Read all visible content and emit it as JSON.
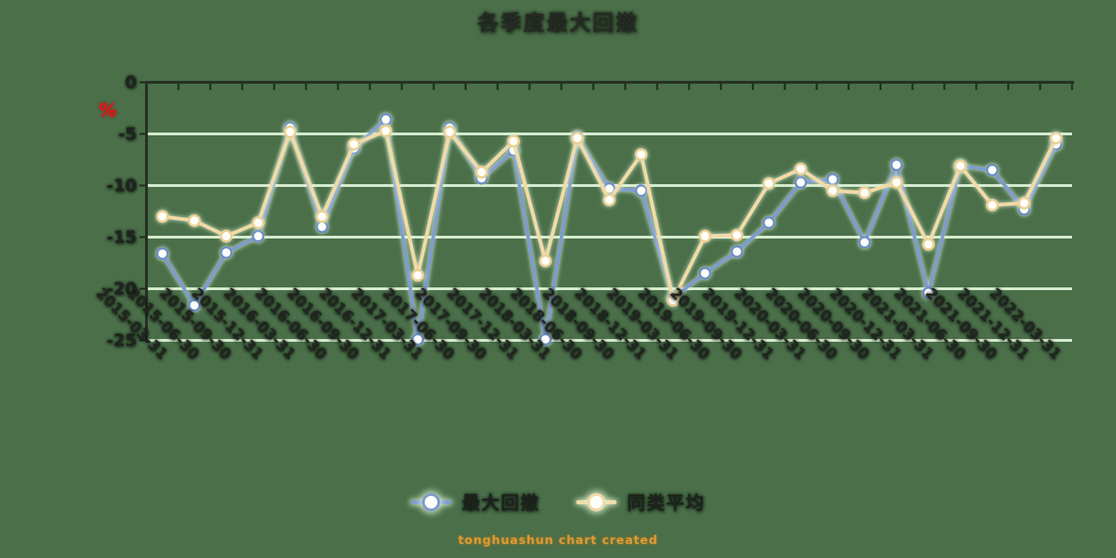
{
  "title": "各季度最大回撤",
  "y_axis": {
    "unit": "%",
    "tick_labels": [
      "0",
      "-5",
      "-10",
      "-15",
      "-20",
      "-25"
    ],
    "tick_values": [
      0,
      -5,
      -10,
      -15,
      -20,
      -25
    ]
  },
  "legend": {
    "items": [
      {
        "label": "最大回撤",
        "color": "#7d9ccf"
      },
      {
        "label": "同类平均",
        "color": "#f2daa6"
      }
    ]
  },
  "watermark": "tonghuashun chart created",
  "colors": {
    "background": "#4a6f49",
    "gridline": "#d6ecd0",
    "axis": "#243023",
    "glow": "#e8fadc",
    "blue_line": "#7d9ccf",
    "blue_marker_ring": "#6e8fc7",
    "yellow_line": "#f2daa6",
    "yellow_marker_ring": "#ecd093",
    "marker_fill": "#fdfefa",
    "title_text": "#252b24",
    "unit_text": "#e01717",
    "watermark_text": "#d89b37"
  },
  "chart_data": {
    "type": "line",
    "title": "各季度最大回撤",
    "ylabel": "%",
    "ylim": [
      -25,
      0
    ],
    "grid": true,
    "legend_position": "bottom",
    "categories": [
      "2015-03-31",
      "2015-06-30",
      "2015-09-30",
      "2015-12-31",
      "2016-03-31",
      "2016-06-30",
      "2016-09-30",
      "2016-12-31",
      "2017-03-31",
      "2017-06-30",
      "2017-09-30",
      "2017-12-31",
      "2018-03-31",
      "2018-06-30",
      "2018-09-30",
      "2018-12-31",
      "2019-03-31",
      "2019-06-30",
      "2019-09-30",
      "2019-12-31",
      "2020-03-31",
      "2020-06-30",
      "2020-09-30",
      "2020-12-31",
      "2021-03-31",
      "2021-06-30",
      "2021-09-30",
      "2021-12-31",
      "2022-03-31"
    ],
    "series": [
      {
        "name": "最大回撤",
        "color": "#7d9ccf",
        "marker_ring": "#6e8fc7",
        "values": [
          -16.6,
          -21.6,
          -16.5,
          -14.9,
          -4.4,
          -14.0,
          -6.4,
          -3.6,
          -24.9,
          -4.4,
          -9.3,
          -6.6,
          -24.9,
          -5.3,
          -10.3,
          -10.5,
          -20.9,
          -18.5,
          -16.4,
          -13.6,
          -9.7,
          -9.4,
          -15.5,
          -8.0,
          -20.4,
          -8.1,
          -8.5,
          -12.3,
          -6.0
        ]
      },
      {
        "name": "同类平均",
        "color": "#f2daa6",
        "marker_ring": "#ecd093",
        "values": [
          -13.0,
          -13.4,
          -14.9,
          -13.6,
          -4.8,
          -13.0,
          -6.0,
          -4.7,
          -18.7,
          -4.8,
          -8.7,
          -5.7,
          -17.3,
          -5.4,
          -11.4,
          -7.0,
          -21.1,
          -14.9,
          -14.8,
          -9.8,
          -8.4,
          -10.5,
          -10.7,
          -9.7,
          -15.7,
          -8.1,
          -11.9,
          -11.7,
          -5.4
        ]
      }
    ]
  }
}
